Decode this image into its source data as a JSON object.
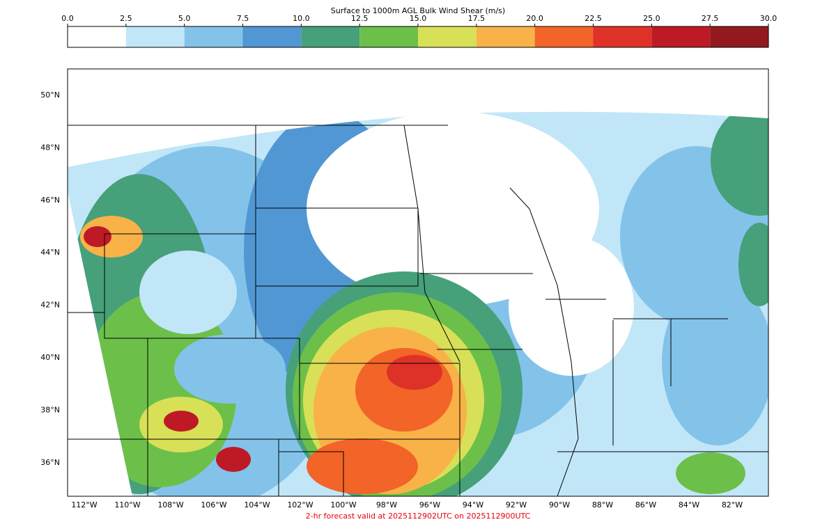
{
  "colorbar": {
    "title": "Surface to 1000m AGL Bulk Wind Shear (m/s)",
    "ticks": [
      {
        "value": 0,
        "label": "0.0"
      },
      {
        "value": 2.5,
        "label": "2.5"
      },
      {
        "value": 5,
        "label": "5.0"
      },
      {
        "value": 7.5,
        "label": "7.5"
      },
      {
        "value": 10,
        "label": "10.0"
      },
      {
        "value": 12.5,
        "label": "12.5"
      },
      {
        "value": 15,
        "label": "15.0"
      },
      {
        "value": 17.5,
        "label": "17.5"
      },
      {
        "value": 20,
        "label": "20.0"
      },
      {
        "value": 22.5,
        "label": "22.5"
      },
      {
        "value": 25,
        "label": "25.0"
      },
      {
        "value": 27.5,
        "label": "27.5"
      },
      {
        "value": 30,
        "label": "30.0"
      }
    ],
    "colors": [
      "#ffffff",
      "#c1e6f8",
      "#83c3ea",
      "#5197d3",
      "#46a07a",
      "#6cc049",
      "#d8e058",
      "#f8b248",
      "#f26428",
      "#de3228",
      "#be1a26",
      "#921a1e"
    ]
  },
  "map": {
    "latitudes": [
      {
        "value": 50,
        "label": "50°N"
      },
      {
        "value": 48,
        "label": "48°N"
      },
      {
        "value": 46,
        "label": "46°N"
      },
      {
        "value": 44,
        "label": "44°N"
      },
      {
        "value": 42,
        "label": "42°N"
      },
      {
        "value": 40,
        "label": "40°N"
      },
      {
        "value": 38,
        "label": "38°N"
      },
      {
        "value": 36,
        "label": "36°N"
      }
    ],
    "longitudes": [
      {
        "value": 112,
        "label": "112°W"
      },
      {
        "value": 110,
        "label": "110°W"
      },
      {
        "value": 108,
        "label": "108°W"
      },
      {
        "value": 106,
        "label": "106°W"
      },
      {
        "value": 104,
        "label": "104°W"
      },
      {
        "value": 102,
        "label": "102°W"
      },
      {
        "value": 100,
        "label": "100°W"
      },
      {
        "value": 98,
        "label": "98°W"
      },
      {
        "value": 96,
        "label": "96°W"
      },
      {
        "value": 94,
        "label": "94°W"
      },
      {
        "value": 92,
        "label": "92°W"
      },
      {
        "value": 90,
        "label": "90°W"
      },
      {
        "value": 88,
        "label": "88°W"
      },
      {
        "value": 86,
        "label": "86°W"
      },
      {
        "value": 84,
        "label": "84°W"
      },
      {
        "value": 82,
        "label": "82°W"
      }
    ]
  },
  "footer": "2-hr forecast valid at 2025112902UTC on 2025112900UTC"
}
